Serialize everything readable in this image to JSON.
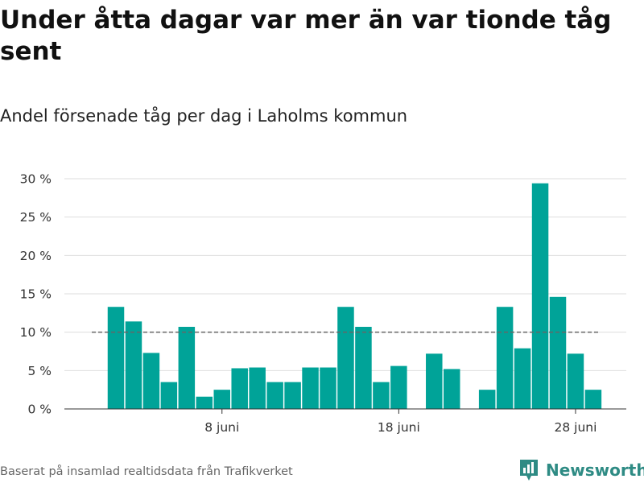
{
  "title": "Under åtta dagar var mer än var tionde tåg sent",
  "subtitle": "Andel försenade tåg per dag i Laholms kommun",
  "source": "Baserat på insamlad realtidsdata från Trafikverket",
  "brand": {
    "name": "Newsworthy",
    "icon": "newsworthy-logo-icon"
  },
  "colors": {
    "bar": "#00a398",
    "reference_line": "#666666",
    "grid": "#dddddd",
    "brand": "#2e8b84"
  },
  "chart_data": {
    "type": "bar",
    "x": [
      "2 juni",
      "3 juni",
      "4 juni",
      "5 juni",
      "6 juni",
      "7 juni",
      "8 juni",
      "9 juni",
      "10 juni",
      "11 juni",
      "12 juni",
      "13 juni",
      "14 juni",
      "15 juni",
      "16 juni",
      "17 juni",
      "18 juni",
      "19 juni",
      "20 juni",
      "21 juni",
      "22 juni",
      "23 juni",
      "24 juni",
      "25 juni",
      "26 juni",
      "27 juni",
      "28 juni",
      "29 juni"
    ],
    "values": [
      13.3,
      11.4,
      7.3,
      3.5,
      10.7,
      1.6,
      2.5,
      5.3,
      5.4,
      3.5,
      3.5,
      5.4,
      5.4,
      13.3,
      10.7,
      3.5,
      5.6,
      0,
      7.2,
      5.2,
      0,
      2.5,
      13.3,
      7.9,
      29.4,
      14.6,
      7.2,
      2.5
    ],
    "x_tick_labels": [
      "8 juni",
      "18 juni",
      "28 juni"
    ],
    "x_tick_positions": [
      "8 juni",
      "18 juni",
      "28 juni"
    ],
    "y_ticks": [
      0,
      5,
      10,
      15,
      20,
      25,
      30
    ],
    "y_tick_labels": [
      "0 %",
      "5 %",
      "10 %",
      "15 %",
      "20 %",
      "25 %",
      "30 %"
    ],
    "ylim": [
      0,
      30
    ],
    "reference_line": {
      "value": 10,
      "style": "dashed"
    },
    "grid": true,
    "xlabel": "",
    "ylabel": ""
  }
}
